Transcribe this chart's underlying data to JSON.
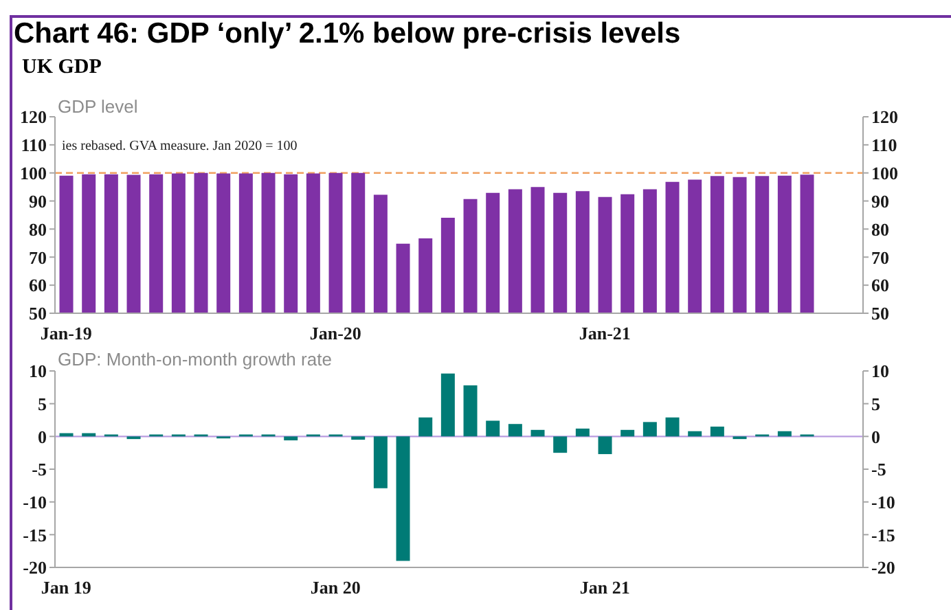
{
  "chart_data": [
    {
      "type": "bar",
      "title": "Chart 46: GDP ‘only’ 2.1% below pre-crisis levels",
      "subtitle": "UK GDP",
      "ylabel": "GDP level",
      "annotations": [
        "ies rebased. GVA measure. Jan 2020 = 100"
      ],
      "categories": [
        "Jan-19",
        null,
        null,
        null,
        null,
        null,
        null,
        null,
        null,
        null,
        null,
        null,
        "Jan-20",
        null,
        null,
        null,
        null,
        null,
        null,
        null,
        null,
        null,
        null,
        null,
        "Jan-21",
        null,
        null,
        null,
        null,
        null,
        null,
        null,
        null,
        null,
        null,
        null
      ],
      "values": [
        99.0,
        99.5,
        99.5,
        99.3,
        99.5,
        99.8,
        100,
        99.8,
        99.8,
        100,
        99.5,
        99.8,
        100,
        100,
        92.2,
        74.8,
        76.7,
        84.0,
        90.7,
        92.9,
        94.2,
        95.0,
        92.9,
        93.5,
        91.4,
        92.4,
        94.2,
        96.8,
        97.6,
        98.9,
        98.5,
        98.9,
        99.0,
        99.4,
        null,
        null
      ],
      "color": "#7f31a6",
      "ylim": [
        50,
        120
      ],
      "yticks": [
        50,
        60,
        70,
        80,
        90,
        100,
        110,
        120
      ],
      "y2lim": [
        50,
        120
      ],
      "y2ticks": [
        50,
        60,
        70,
        80,
        90,
        100,
        110,
        120
      ],
      "ref_lines": [
        {
          "axis": "y",
          "value": 100,
          "color": "#f0a060",
          "line_style": "dashed"
        }
      ]
    },
    {
      "type": "bar",
      "ylabel": "GDP: Month-on-month growth rate",
      "categories": [
        "Jan 19",
        null,
        null,
        null,
        null,
        null,
        null,
        null,
        null,
        null,
        null,
        null,
        "Jan 20",
        null,
        null,
        null,
        null,
        null,
        null,
        null,
        null,
        null,
        null,
        null,
        "Jan 21",
        null,
        null,
        null,
        null,
        null,
        null,
        null,
        null,
        null,
        null,
        null
      ],
      "values": [
        0.5,
        0.5,
        0.3,
        -0.4,
        0.3,
        0.3,
        0.3,
        -0.3,
        0.3,
        0.3,
        -0.6,
        0.3,
        0.3,
        -0.5,
        -7.9,
        -19.0,
        2.9,
        9.6,
        7.8,
        2.4,
        1.9,
        1.0,
        -2.5,
        1.2,
        -2.7,
        1.0,
        2.2,
        2.9,
        0.8,
        1.5,
        -0.4,
        0.3,
        0.8,
        0.3,
        null,
        null
      ],
      "color": "#007b76",
      "ylim": [
        -20,
        10
      ],
      "yticks": [
        -20,
        -15,
        -10,
        -5,
        0,
        5,
        10
      ],
      "y2lim": [
        -20,
        10
      ],
      "y2ticks": [
        -20,
        -15,
        -10,
        -5,
        0,
        5,
        10
      ],
      "ref_lines": [
        {
          "axis": "y",
          "value": 0,
          "color": "#b99be0",
          "line_style": "solid"
        }
      ]
    }
  ]
}
